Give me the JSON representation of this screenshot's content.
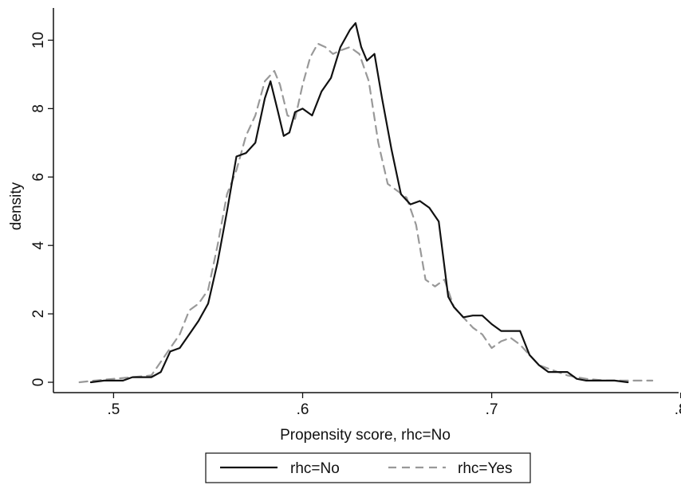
{
  "chart_data": {
    "type": "line",
    "title": "",
    "xlabel": "Propensity score, rhc=No",
    "ylabel": "density",
    "xlim": [
      0.48,
      0.79
    ],
    "ylim": [
      0,
      10.5
    ],
    "x_ticks": [
      {
        "value": 0.5,
        "label": ".5"
      },
      {
        "value": 0.6,
        "label": ".6"
      },
      {
        "value": 0.7,
        "label": ".7"
      },
      {
        "value": 0.8,
        "label": ".8"
      }
    ],
    "y_ticks": [
      {
        "value": 0,
        "label": "0"
      },
      {
        "value": 2,
        "label": "2"
      },
      {
        "value": 4,
        "label": "4"
      },
      {
        "value": 6,
        "label": "6"
      },
      {
        "value": 8,
        "label": "8"
      },
      {
        "value": 10,
        "label": "10"
      }
    ],
    "grid": false,
    "legend_position": "bottom",
    "series": [
      {
        "name": "rhc=No",
        "color": "#111111",
        "dash": "solid",
        "x": [
          0.488,
          0.495,
          0.5,
          0.505,
          0.51,
          0.515,
          0.52,
          0.525,
          0.53,
          0.535,
          0.54,
          0.545,
          0.55,
          0.555,
          0.56,
          0.565,
          0.57,
          0.575,
          0.58,
          0.583,
          0.587,
          0.59,
          0.593,
          0.596,
          0.6,
          0.605,
          0.61,
          0.615,
          0.62,
          0.625,
          0.628,
          0.631,
          0.634,
          0.638,
          0.642,
          0.647,
          0.652,
          0.657,
          0.662,
          0.667,
          0.672,
          0.677,
          0.68,
          0.685,
          0.69,
          0.695,
          0.7,
          0.705,
          0.71,
          0.715,
          0.72,
          0.725,
          0.73,
          0.735,
          0.74,
          0.745,
          0.75,
          0.755,
          0.76,
          0.765,
          0.772
        ],
        "y": [
          0.0,
          0.05,
          0.05,
          0.05,
          0.15,
          0.15,
          0.15,
          0.3,
          0.9,
          1.0,
          1.4,
          1.8,
          2.3,
          3.5,
          5.0,
          6.6,
          6.7,
          7.0,
          8.3,
          8.8,
          7.9,
          7.2,
          7.3,
          7.9,
          8.0,
          7.8,
          8.5,
          8.9,
          9.8,
          10.3,
          10.5,
          9.8,
          9.4,
          9.6,
          8.3,
          6.8,
          5.5,
          5.2,
          5.3,
          5.1,
          4.7,
          2.5,
          2.2,
          1.9,
          1.95,
          1.95,
          1.7,
          1.5,
          1.5,
          1.5,
          0.8,
          0.5,
          0.3,
          0.3,
          0.3,
          0.1,
          0.05,
          0.05,
          0.05,
          0.05,
          0.0
        ]
      },
      {
        "name": "rhc=Yes",
        "color": "#999999",
        "dash": "dashed",
        "x": [
          0.482,
          0.49,
          0.5,
          0.51,
          0.52,
          0.525,
          0.53,
          0.535,
          0.54,
          0.545,
          0.55,
          0.555,
          0.56,
          0.565,
          0.57,
          0.575,
          0.58,
          0.585,
          0.588,
          0.592,
          0.596,
          0.6,
          0.604,
          0.608,
          0.612,
          0.616,
          0.62,
          0.625,
          0.63,
          0.635,
          0.64,
          0.645,
          0.65,
          0.655,
          0.66,
          0.665,
          0.67,
          0.675,
          0.68,
          0.685,
          0.69,
          0.695,
          0.7,
          0.705,
          0.71,
          0.715,
          0.72,
          0.725,
          0.73,
          0.735,
          0.74,
          0.75,
          0.76,
          0.77,
          0.785
        ],
        "y": [
          0.0,
          0.05,
          0.1,
          0.15,
          0.2,
          0.6,
          1.0,
          1.4,
          2.1,
          2.3,
          2.7,
          4.0,
          5.5,
          6.2,
          7.2,
          7.8,
          8.8,
          9.1,
          8.7,
          7.8,
          7.7,
          8.7,
          9.5,
          9.9,
          9.8,
          9.6,
          9.7,
          9.8,
          9.6,
          8.8,
          7.0,
          5.8,
          5.6,
          5.4,
          4.6,
          3.0,
          2.8,
          3.0,
          2.2,
          1.9,
          1.6,
          1.4,
          1.0,
          1.2,
          1.3,
          1.1,
          0.8,
          0.5,
          0.4,
          0.3,
          0.2,
          0.1,
          0.05,
          0.05,
          0.05
        ]
      }
    ]
  }
}
